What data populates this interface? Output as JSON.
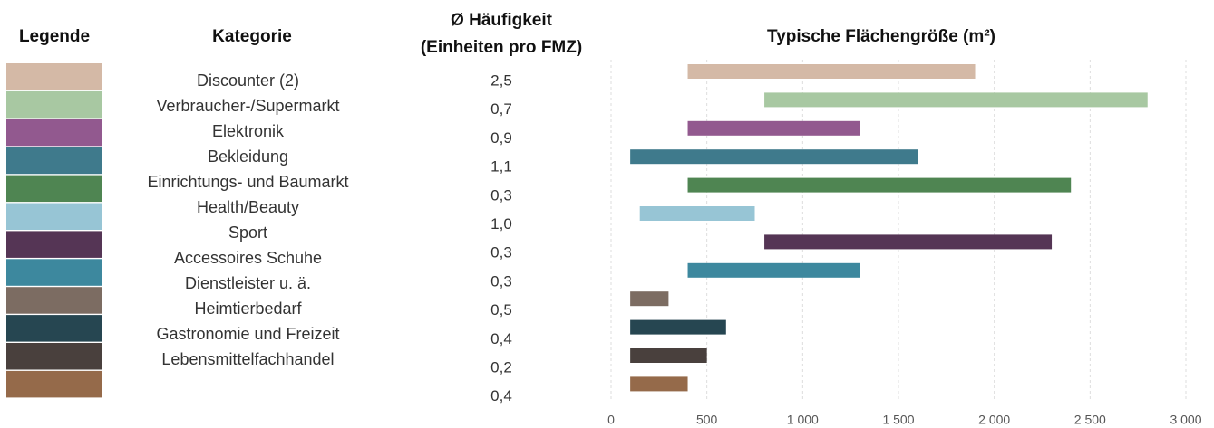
{
  "chart_data": {
    "type": "range_bar",
    "legend_header": "Legende",
    "category_header": "Kategorie",
    "frequency_header": [
      "Ø Häufigkeit",
      "(Einheiten pro FMZ)"
    ],
    "title": "Typische Flächengröße (m²)",
    "categories": [
      "Discounter (2)",
      "Verbraucher-/Supermarkt",
      "Elektronik",
      "Bekleidung",
      "Einrichtungs- und Baumarkt",
      "Health/Beauty",
      "Sport",
      "Accessoires Schuhe",
      "Dienstleister u. ä.",
      "Heimtierbedarf",
      "Gastronomie und Freizeit",
      "Lebensmittelfachhandel"
    ],
    "frequencies": [
      "2,5",
      "0,7",
      "0,9",
      "1,1",
      "0,3",
      "1,0",
      "0,3",
      "0,3",
      "0,5",
      "0,4",
      "0,2",
      "0,4"
    ],
    "colors": [
      "#d4b9a6",
      "#a8c8a2",
      "#92598f",
      "#3f7a8c",
      "#4f8552",
      "#97c5d5",
      "#553555",
      "#3d889e",
      "#7c6c62",
      "#264651",
      "#49403d",
      "#956a4a"
    ],
    "starts": [
      400,
      800,
      400,
      100,
      400,
      150,
      800,
      400,
      100,
      100,
      100,
      100
    ],
    "ends": [
      1900,
      2800,
      1300,
      1600,
      2400,
      750,
      2300,
      1300,
      300,
      600,
      500,
      400
    ],
    "xlim": [
      0,
      3000
    ],
    "xticks": [
      0,
      500,
      {
        "value": 1000,
        "label": "1 000"
      },
      {
        "value": 1500,
        "label": "1 500"
      },
      {
        "value": 2000,
        "label": "2 000"
      },
      {
        "value": 2500,
        "label": "2 500"
      },
      {
        "value": 3000,
        "label": "3 000"
      }
    ],
    "grid": true
  }
}
